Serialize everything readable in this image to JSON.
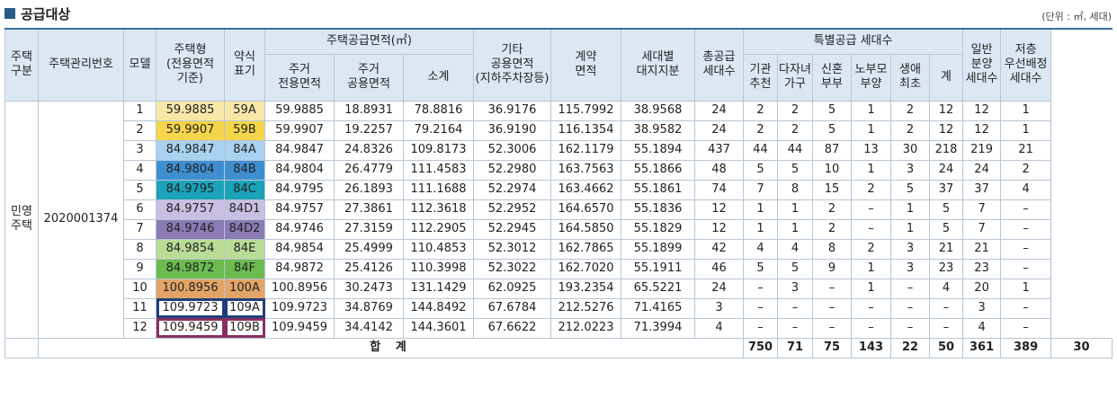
{
  "title": "공급대상",
  "unit_note": "(단위 : ㎡, 세대)",
  "headers": {
    "house_type": "주택\n구분",
    "mgmt_no": "주택관리번호",
    "model": "모델",
    "house_form": "주택형\n(전용면적\n기준)",
    "short_label": "약식\n표기",
    "supply_area": "주택공급면적(㎡)",
    "exclusive": "주거\n전용면적",
    "common": "주거\n공용면적",
    "subtotal": "소계",
    "other_common": "기타\n공용면적\n(지하주차장등)",
    "contract_area": "계약\n면적",
    "land_share": "세대별\n대지지분",
    "total_supply": "총공급\n세대수",
    "special_supply": "특별공급 세대수",
    "agency": "기관\n추천",
    "multi_child": "다자녀\n가구",
    "newlywed": "신혼\n부부",
    "elderly_parent": "노부모\n부양",
    "first_life": "생애\n최초",
    "special_sum": "계",
    "general_supply": "일반\n분양\n세대수",
    "low_floor_priority": "저층\n우선배정\n세대수"
  },
  "type_label": "민영\n주택",
  "mgmt_no_value": "2020001374",
  "rows": [
    {
      "model": "1",
      "house_form": "59.9885",
      "short": "59A",
      "color": "#f7e8a8",
      "exclusive": "59.9885",
      "common": "18.8931",
      "subtotal": "78.8816",
      "other": "36.9176",
      "contract": "115.7992",
      "land": "38.9568",
      "total": "24",
      "agency": "2",
      "multi": "2",
      "newlywed": "5",
      "elderly": "1",
      "first": "2",
      "special": "12",
      "general": "12",
      "low": "1"
    },
    {
      "model": "2",
      "house_form": "59.9907",
      "short": "59B",
      "color": "#f5d54a",
      "exclusive": "59.9907",
      "common": "19.2257",
      "subtotal": "79.2164",
      "other": "36.9190",
      "contract": "116.1354",
      "land": "38.9582",
      "total": "24",
      "agency": "2",
      "multi": "2",
      "newlywed": "5",
      "elderly": "1",
      "first": "2",
      "special": "12",
      "general": "12",
      "low": "1"
    },
    {
      "model": "3",
      "house_form": "84.9847",
      "short": "84A",
      "color": "#a8d2ef",
      "exclusive": "84.9847",
      "common": "24.8326",
      "subtotal": "109.8173",
      "other": "52.3006",
      "contract": "162.1179",
      "land": "55.1894",
      "total": "437",
      "agency": "44",
      "multi": "44",
      "newlywed": "87",
      "elderly": "13",
      "first": "30",
      "special": "218",
      "general": "219",
      "low": "21"
    },
    {
      "model": "4",
      "house_form": "84.9804",
      "short": "84B",
      "color": "#3f8fd0",
      "exclusive": "84.9804",
      "common": "26.4779",
      "subtotal": "111.4583",
      "other": "52.2980",
      "contract": "163.7563",
      "land": "55.1866",
      "total": "48",
      "agency": "5",
      "multi": "5",
      "newlywed": "10",
      "elderly": "1",
      "first": "3",
      "special": "24",
      "general": "24",
      "low": "2"
    },
    {
      "model": "5",
      "house_form": "84.9795",
      "short": "84C",
      "color": "#1ba3b9",
      "exclusive": "84.9795",
      "common": "26.1893",
      "subtotal": "111.1688",
      "other": "52.2974",
      "contract": "163.4662",
      "land": "55.1861",
      "total": "74",
      "agency": "7",
      "multi": "8",
      "newlywed": "15",
      "elderly": "2",
      "first": "5",
      "special": "37",
      "general": "37",
      "low": "4"
    },
    {
      "model": "6",
      "house_form": "84.9757",
      "short": "84D1",
      "color": "#c9bfe3",
      "exclusive": "84.9757",
      "common": "27.3861",
      "subtotal": "112.3618",
      "other": "52.2952",
      "contract": "164.6570",
      "land": "55.1836",
      "total": "12",
      "agency": "1",
      "multi": "1",
      "newlywed": "2",
      "elderly": "–",
      "first": "1",
      "special": "5",
      "general": "7",
      "low": "–"
    },
    {
      "model": "7",
      "house_form": "84.9746",
      "short": "84D2",
      "color": "#8a7bb5",
      "exclusive": "84.9746",
      "common": "27.3159",
      "subtotal": "112.2905",
      "other": "52.2945",
      "contract": "164.5850",
      "land": "55.1829",
      "total": "12",
      "agency": "1",
      "multi": "1",
      "newlywed": "2",
      "elderly": "–",
      "first": "1",
      "special": "5",
      "general": "7",
      "low": "–"
    },
    {
      "model": "8",
      "house_form": "84.9854",
      "short": "84E",
      "color": "#b8dc95",
      "exclusive": "84.9854",
      "common": "25.4999",
      "subtotal": "110.4853",
      "other": "52.3012",
      "contract": "162.7865",
      "land": "55.1899",
      "total": "42",
      "agency": "4",
      "multi": "4",
      "newlywed": "8",
      "elderly": "2",
      "first": "3",
      "special": "21",
      "general": "21",
      "low": "–"
    },
    {
      "model": "9",
      "house_form": "84.9872",
      "short": "84F",
      "color": "#6bbb4f",
      "exclusive": "84.9872",
      "common": "25.4126",
      "subtotal": "110.3998",
      "other": "52.3022",
      "contract": "162.7020",
      "land": "55.1911",
      "total": "46",
      "agency": "5",
      "multi": "5",
      "newlywed": "9",
      "elderly": "1",
      "first": "3",
      "special": "23",
      "general": "23",
      "low": "–"
    },
    {
      "model": "10",
      "house_form": "100.8956",
      "short": "100A",
      "color": "#e2a467",
      "exclusive": "100.8956",
      "common": "30.2473",
      "subtotal": "131.1429",
      "other": "62.0925",
      "contract": "193.2354",
      "land": "65.5221",
      "total": "24",
      "agency": "–",
      "multi": "3",
      "newlywed": "–",
      "elderly": "1",
      "first": "–",
      "special": "4",
      "general": "20",
      "low": "1"
    },
    {
      "model": "11",
      "house_form": "109.9723",
      "short": "109A",
      "color": "navy-box",
      "exclusive": "109.9723",
      "common": "34.8769",
      "subtotal": "144.8492",
      "other": "67.6784",
      "contract": "212.5276",
      "land": "71.4165",
      "total": "3",
      "agency": "–",
      "multi": "–",
      "newlywed": "–",
      "elderly": "–",
      "first": "–",
      "special": "–",
      "general": "3",
      "low": "–"
    },
    {
      "model": "12",
      "house_form": "109.9459",
      "short": "109B",
      "color": "plum-box",
      "exclusive": "109.9459",
      "common": "34.4142",
      "subtotal": "144.3601",
      "other": "67.6622",
      "contract": "212.0223",
      "land": "71.3994",
      "total": "4",
      "agency": "–",
      "multi": "–",
      "newlywed": "–",
      "elderly": "–",
      "first": "–",
      "special": "–",
      "general": "4",
      "low": "–"
    }
  ],
  "totals": {
    "label": "합 계",
    "total": "750",
    "agency": "71",
    "multi": "75",
    "newlywed": "143",
    "elderly": "22",
    "first": "50",
    "special": "361",
    "general": "389",
    "low": "30"
  }
}
